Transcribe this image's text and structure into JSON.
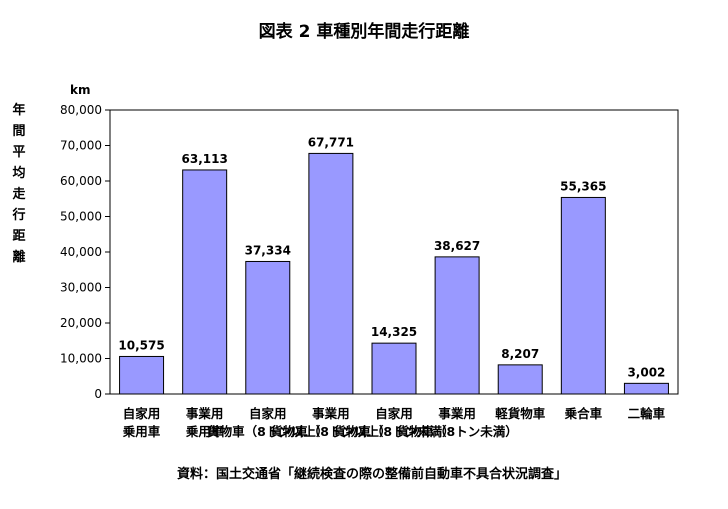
{
  "chart_data": {
    "type": "bar",
    "title": "図表 2 車種別年間走行距離",
    "ylabel": "年間平均走行距離",
    "unit": "km",
    "ylim": [
      0,
      80000
    ],
    "yticks": [
      "0",
      "10,000",
      "20,000",
      "30,000",
      "40,000",
      "50,000",
      "60,000",
      "70,000",
      "80,000"
    ],
    "grid": false,
    "categories": [
      [
        "自家用",
        "乗用車"
      ],
      [
        "事業用",
        "乗用車"
      ],
      [
        "自家用",
        "貨物車（8トン以上）"
      ],
      [
        "事業用",
        "貨物車（8トン以上）"
      ],
      [
        "自家用",
        "貨物車（8トン未満）"
      ],
      [
        "事業用",
        "貨物車（8トン未満）"
      ],
      [
        "軽貨物車"
      ],
      [
        "乗合車"
      ],
      [
        "二輪車"
      ]
    ],
    "values": [
      10575,
      63113,
      37334,
      67771,
      14325,
      38627,
      8207,
      55365,
      3002
    ],
    "value_labels": [
      "10,575",
      "63,113",
      "37,334",
      "67,771",
      "14,325",
      "38,627",
      "8,207",
      "55,365",
      "3,002"
    ],
    "bar_color": "#9999ff",
    "source": "資料：国土交通省「継続検査の際の整備前自動車不具合状況調査」"
  }
}
